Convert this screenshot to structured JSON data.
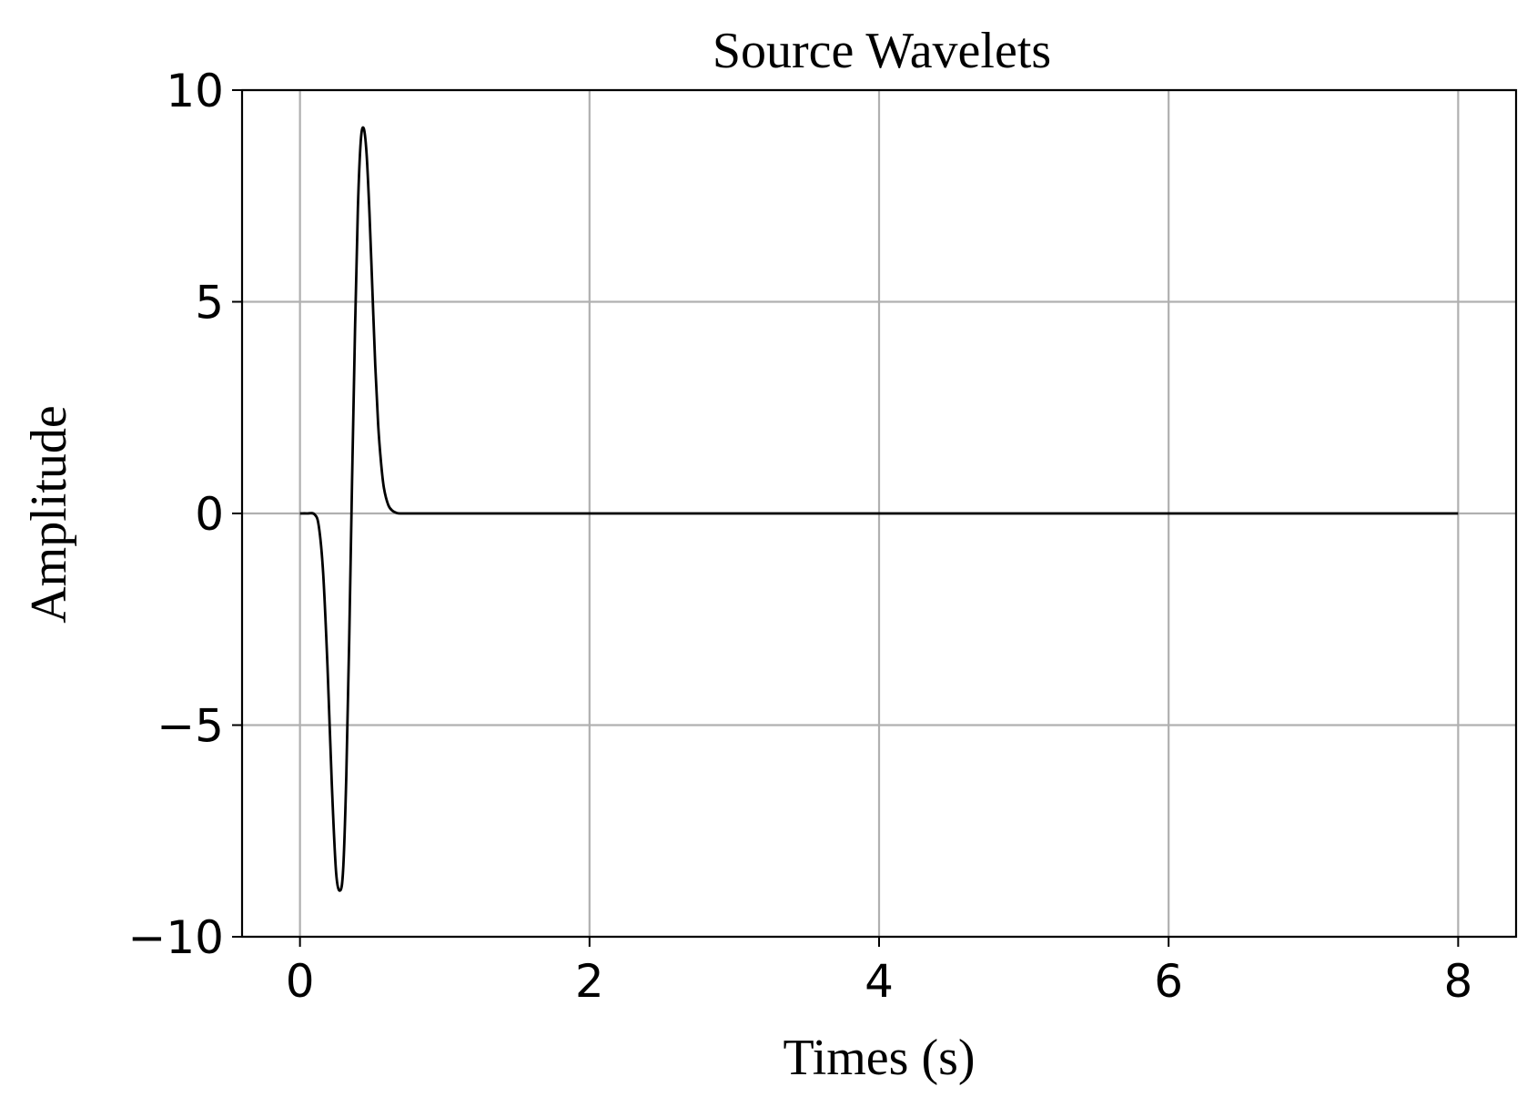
{
  "chart_data": {
    "type": "line",
    "title": "Source Wavelets",
    "xlabel": "Times (s)",
    "ylabel": "Amplitude",
    "xlim": [
      -0.4,
      8.4
    ],
    "ylim": [
      -10,
      10
    ],
    "xticks": [
      0,
      2,
      4,
      6,
      8
    ],
    "xtick_labels": [
      "0",
      "2",
      "4",
      "6",
      "8"
    ],
    "yticks": [
      -10,
      -5,
      0,
      5,
      10
    ],
    "ytick_labels": [
      "−10",
      "−5",
      "0",
      "5",
      "10"
    ],
    "grid": true,
    "colors": {
      "line": "#000000",
      "grid": "#b0b0b0"
    },
    "series": [
      {
        "x": [
          0,
          0.05,
          0.1,
          0.13,
          0.16,
          0.19,
          0.22,
          0.25,
          0.28,
          0.3,
          0.32,
          0.34,
          0.36,
          0.38,
          0.4,
          0.42,
          0.44,
          0.46,
          0.48,
          0.5,
          0.52,
          0.54,
          0.56,
          0.58,
          0.61,
          0.64,
          0.67,
          0.7,
          0.75,
          0.8,
          1,
          2,
          3,
          4,
          5,
          6,
          7,
          8
        ],
        "y": [
          0,
          0,
          -0.02,
          -0.3,
          -1.4,
          -3.6,
          -6.4,
          -8.5,
          -8.9,
          -8.3,
          -6.2,
          -3.0,
          0.8,
          4.3,
          7.2,
          8.8,
          9.1,
          8.5,
          7.1,
          5.3,
          3.5,
          2.1,
          1.2,
          0.6,
          0.2,
          0.06,
          0.01,
          0,
          0,
          0,
          0,
          0,
          0,
          0,
          0,
          0,
          0,
          0
        ]
      }
    ]
  }
}
